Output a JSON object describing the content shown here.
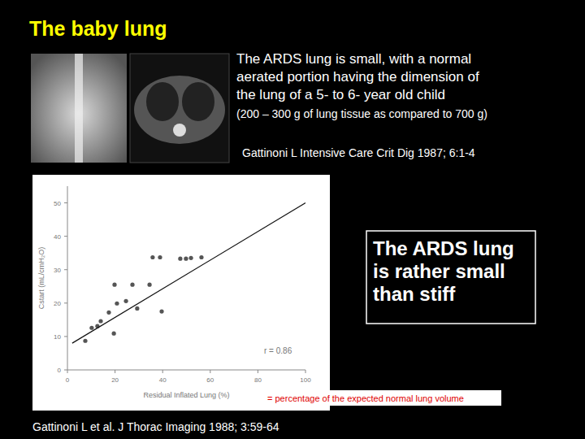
{
  "slide": {
    "title": "The baby lung",
    "text": [
      "The ARDS lung is small, with a normal",
      "aerated portion having the dimension of",
      "the lung of a 5- to 6- year old child"
    ],
    "subtext": "(200 – 300 g of lung tissue as compared to 700 g)",
    "citation1": "Gattinoni L   Intensive Care Crit Dig 1987; 6:1-4",
    "box": [
      "The ARDS lung",
      "is rather small",
      "than stiff"
    ],
    "footnote": "= percentage of the expected normal lung volume",
    "citation2": "Gattinoni L et al.   J Thorac Imaging 1988; 3:59-64"
  },
  "chart_data": {
    "type": "scatter",
    "x_label": "Residual Inflated Lung (%)",
    "y_label": "Cstart (mL/cmH₂O)",
    "annotation": "r = 0.86",
    "xlim": [
      0,
      100
    ],
    "ylim": [
      0,
      55
    ],
    "xticks": [
      0,
      20,
      40,
      60,
      80,
      100
    ],
    "yticks": [
      0,
      10,
      20,
      30,
      40,
      50
    ],
    "grid": false,
    "series": [
      {
        "type": "scatter",
        "color": "#555555",
        "marker": "circle",
        "x": [
          7.5,
          10.2,
          12.6,
          14,
          17.4,
          19.5,
          19.8,
          20.8,
          24.6,
          27.3,
          29.3,
          34.5,
          35.8,
          38.9,
          39.6,
          47.4,
          49.8,
          51.9,
          56.3
        ],
        "values": [
          8.7,
          12.6,
          13.1,
          14.6,
          17.2,
          10.9,
          25.5,
          19.9,
          20.6,
          25.5,
          18.4,
          25.5,
          33.7,
          33.7,
          17.5,
          33.3,
          33.3,
          33.5,
          33.7
        ]
      },
      {
        "type": "line",
        "color": "#111111",
        "line_style": "solid",
        "x": [
          2,
          100
        ],
        "values": [
          8,
          50
        ]
      }
    ]
  }
}
